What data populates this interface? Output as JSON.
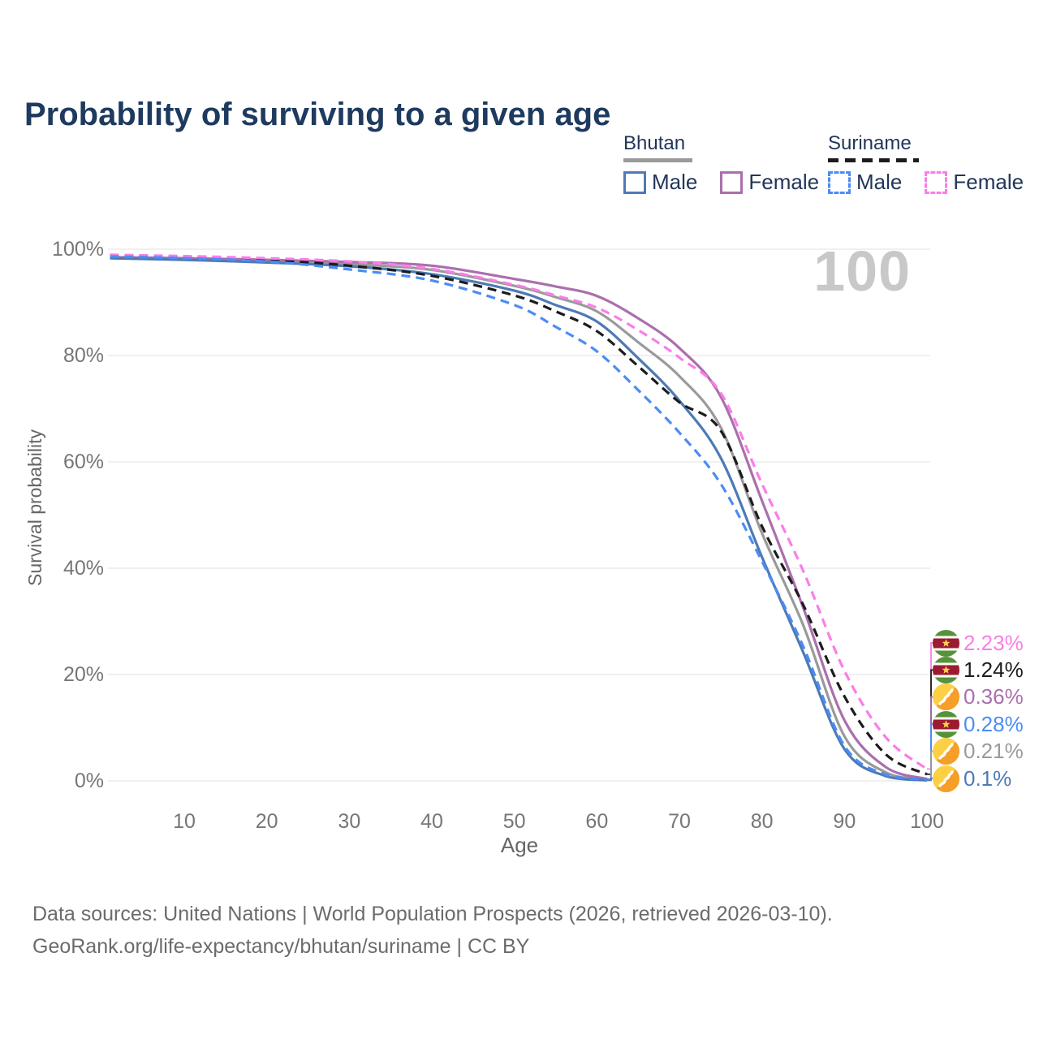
{
  "header": {
    "title": "Probability of surviving to a given age"
  },
  "legend": {
    "groups": [
      {
        "label": "Bhutan",
        "underline_style": "solid",
        "underline_color": "#9a9a9a",
        "items": [
          {
            "label": "Male",
            "color": "#4d7ab5",
            "line": "solid"
          },
          {
            "label": "Female",
            "color": "#ab6fad",
            "line": "solid"
          }
        ]
      },
      {
        "label": "Suriname",
        "underline_style": "dashed",
        "underline_color": "#1c1c1c",
        "items": [
          {
            "label": "Male",
            "color": "#4b8cf5",
            "line": "dashed"
          },
          {
            "label": "Female",
            "color": "#fb7de8",
            "line": "dashed"
          }
        ]
      }
    ]
  },
  "chart_data": {
    "type": "line",
    "title": "Probability of surviving to a given age",
    "xlabel": "Age",
    "ylabel": "Survival probability",
    "xlim": [
      1,
      100
    ],
    "ylim": [
      0,
      100
    ],
    "x_ticks": [
      10,
      20,
      30,
      40,
      50,
      60,
      70,
      80,
      90,
      100
    ],
    "y_ticks": [
      0,
      20,
      40,
      60,
      80,
      100
    ],
    "y_tick_suffix": "%",
    "grid": "horizontal",
    "legend_position": "top-right",
    "watermark": "100",
    "x": [
      1,
      10,
      20,
      30,
      40,
      50,
      55,
      60,
      65,
      70,
      75,
      80,
      85,
      90,
      95,
      100
    ],
    "series": [
      {
        "name": "Bhutan Male",
        "country": "Bhutan",
        "sex": "Male",
        "line": "solid",
        "color": "#4d7ab5",
        "values": [
          98.3,
          98.0,
          97.5,
          96.8,
          95.3,
          92.2,
          89.5,
          86.4,
          79.5,
          71.5,
          60.8,
          42.1,
          24.2,
          6.0,
          0.9,
          0.1
        ],
        "end_label": "0.1%"
      },
      {
        "name": "Bhutan Female",
        "country": "Bhutan",
        "sex": "Female",
        "line": "solid",
        "color": "#ab6fad",
        "values": [
          98.5,
          98.3,
          98.0,
          97.6,
          96.9,
          94.4,
          93.0,
          91.2,
          87.0,
          81.4,
          72.3,
          52.7,
          32.6,
          11.4,
          2.6,
          0.36
        ],
        "end_label": "0.36%"
      },
      {
        "name": "Bhutan",
        "country": "Bhutan",
        "sex": "Both",
        "line": "solid",
        "color": "#9a9a9a",
        "values": [
          98.4,
          98.15,
          97.8,
          97.2,
          96.1,
          93.1,
          91.0,
          88.3,
          82.5,
          76.1,
          66.5,
          46.6,
          29.3,
          8.4,
          1.6,
          0.21
        ],
        "end_label": "0.21%"
      },
      {
        "name": "Suriname Male",
        "country": "Suriname",
        "sex": "Male",
        "line": "dashed",
        "color": "#4b8cf5",
        "values": [
          98.65,
          98.3,
          97.7,
          96.2,
          94.1,
          89.5,
          85.4,
          80.8,
          73.5,
          65.5,
          55.9,
          41.3,
          25.3,
          6.6,
          1.2,
          0.28
        ],
        "end_label": "0.28%"
      },
      {
        "name": "Suriname Female",
        "country": "Suriname",
        "sex": "Female",
        "line": "dashed",
        "color": "#fb7de8",
        "values": [
          98.95,
          98.7,
          98.3,
          97.7,
          96.3,
          93.3,
          91.3,
          89.0,
          84.8,
          79.6,
          73.0,
          55.9,
          39.5,
          20.7,
          8.2,
          2.23
        ],
        "end_label": "2.23%"
      },
      {
        "name": "Suriname",
        "country": "Suriname",
        "sex": "Both",
        "line": "dashed",
        "color": "#1c1c1c",
        "values": [
          98.8,
          98.5,
          98.0,
          96.9,
          95.0,
          91.3,
          88.3,
          84.6,
          78.0,
          71.2,
          65.9,
          47.9,
          33.1,
          15.9,
          5.0,
          1.24
        ],
        "end_label": "1.24%"
      }
    ],
    "end_labels": [
      {
        "label": "2.23%",
        "value": 2.23,
        "flag": "suriname",
        "color": "#fb7de8",
        "series": "Suriname Female"
      },
      {
        "label": "1.24%",
        "value": 1.24,
        "flag": "suriname",
        "color": "#1c1c1c",
        "series": "Suriname"
      },
      {
        "label": "0.36%",
        "value": 0.36,
        "flag": "bhutan",
        "color": "#ab6fad",
        "series": "Bhutan Female"
      },
      {
        "label": "0.28%",
        "value": 0.28,
        "flag": "suriname",
        "color": "#4b8cf5",
        "series": "Suriname Male"
      },
      {
        "label": "0.21%",
        "value": 0.21,
        "flag": "bhutan",
        "color": "#9a9a9a",
        "series": "Bhutan"
      },
      {
        "label": "0.1%",
        "value": 0.1,
        "flag": "bhutan",
        "color": "#4d7ab5",
        "series": "Bhutan Male"
      }
    ],
    "flag_colors": {
      "suriname": {
        "green": "#55933b",
        "white": "#ffffff",
        "red": "#9b1b30",
        "star": "#ffd24a"
      },
      "bhutan": {
        "yellow": "#fccf45",
        "orange": "#f59e28",
        "dragon": "#ffffff"
      }
    }
  },
  "footer": {
    "line1": "Data sources: United Nations | World Population Prospects (2026, retrieved 2026-03-10).",
    "line2": "GeoRank.org/life-expectancy/bhutan/suriname | CC BY"
  }
}
